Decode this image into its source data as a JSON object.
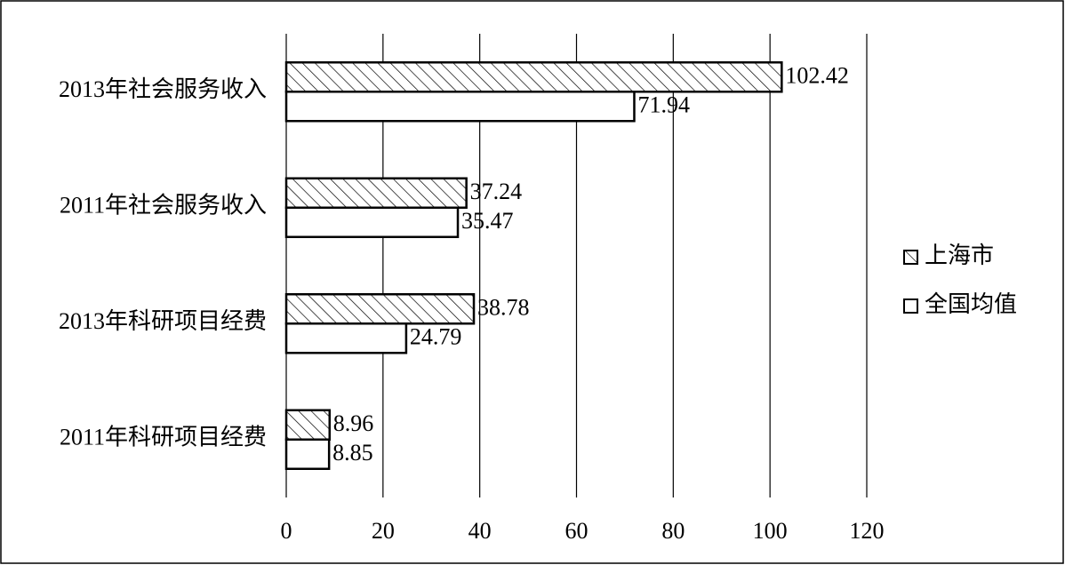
{
  "chart_data": {
    "type": "hbar",
    "categories": [
      "2013年社会服务收入",
      "2011年社会服务收入",
      "2013年科研项目经费",
      "2011年科研项目经费"
    ],
    "series": [
      {
        "name": "上海市",
        "color": "#ffffff",
        "pattern": "hatch",
        "values": [
          102.42,
          37.24,
          38.78,
          8.96
        ]
      },
      {
        "name": "全国均值",
        "color": "#ffffff",
        "pattern": "solid",
        "values": [
          71.94,
          35.47,
          24.79,
          8.85
        ]
      }
    ],
    "xlim": [
      0,
      120
    ],
    "xticks": [
      0,
      20,
      40,
      60,
      80,
      100,
      120
    ],
    "grid": true,
    "legend": "right"
  }
}
